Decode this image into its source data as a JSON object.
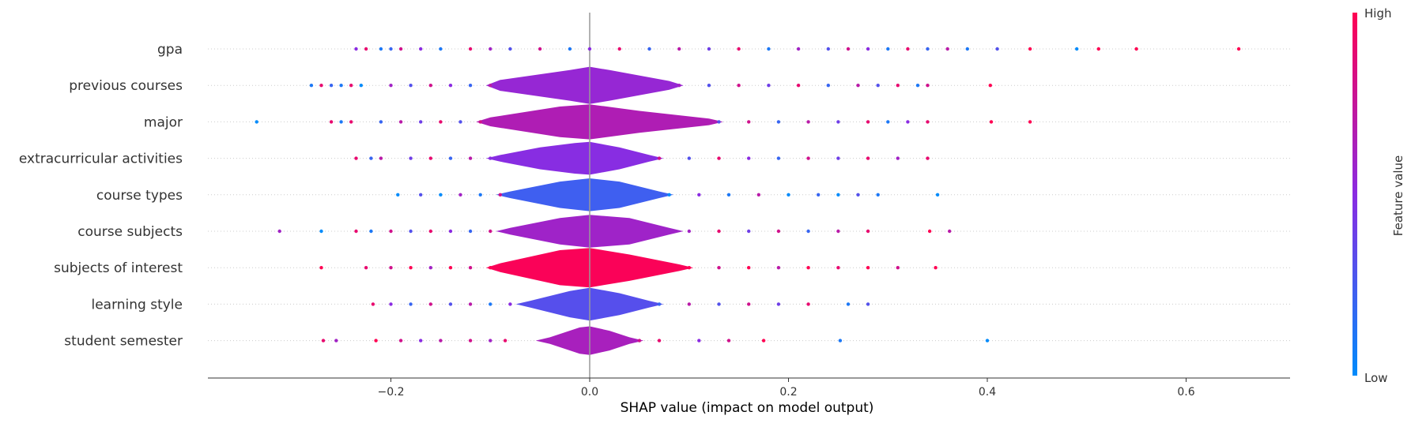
{
  "chart_data": {
    "type": "scatter",
    "subtype": "shap-summary-violin",
    "xlabel": "SHAP value (impact on model output)",
    "xticks": [
      -0.2,
      0.0,
      0.2,
      0.4,
      0.6
    ],
    "xtick_labels": [
      "−0.2",
      "0.0",
      "0.2",
      "0.4",
      "0.6"
    ],
    "xlim": [
      -0.38,
      0.705
    ],
    "colorbar": {
      "label": "Feature value",
      "high_label": "High",
      "low_label": "Low",
      "high_color": "#ff0052",
      "mid_color": "#8a2be2",
      "low_color": "#008bfb"
    },
    "grid": "dotted horizontal per feature",
    "features": [
      {
        "name": "gpa",
        "range": [
          -0.235,
          0.653
        ],
        "violin": [],
        "points": [
          {
            "x": -0.235,
            "c": 0.5
          },
          {
            "x": -0.225,
            "c": 0.9
          },
          {
            "x": -0.21,
            "c": 0.1
          },
          {
            "x": -0.2,
            "c": 0.2
          },
          {
            "x": -0.19,
            "c": 0.8
          },
          {
            "x": -0.17,
            "c": 0.5
          },
          {
            "x": -0.15,
            "c": 0.1
          },
          {
            "x": -0.12,
            "c": 0.9
          },
          {
            "x": -0.1,
            "c": 0.6
          },
          {
            "x": -0.08,
            "c": 0.3
          },
          {
            "x": -0.05,
            "c": 0.8
          },
          {
            "x": -0.02,
            "c": 0.1
          },
          {
            "x": 0.0,
            "c": 0.5
          },
          {
            "x": 0.03,
            "c": 0.9
          },
          {
            "x": 0.06,
            "c": 0.2
          },
          {
            "x": 0.09,
            "c": 0.7
          },
          {
            "x": 0.12,
            "c": 0.4
          },
          {
            "x": 0.15,
            "c": 0.9
          },
          {
            "x": 0.18,
            "c": 0.1
          },
          {
            "x": 0.21,
            "c": 0.6
          },
          {
            "x": 0.24,
            "c": 0.3
          },
          {
            "x": 0.26,
            "c": 0.8
          },
          {
            "x": 0.28,
            "c": 0.5
          },
          {
            "x": 0.3,
            "c": 0.1
          },
          {
            "x": 0.32,
            "c": 0.9
          },
          {
            "x": 0.34,
            "c": 0.2
          },
          {
            "x": 0.36,
            "c": 0.7
          },
          {
            "x": 0.38,
            "c": 0.1
          },
          {
            "x": 0.41,
            "c": 0.3
          },
          {
            "x": 0.443,
            "c": 1.0
          },
          {
            "x": 0.49,
            "c": 0.0
          },
          {
            "x": 0.512,
            "c": 1.0
          },
          {
            "x": 0.55,
            "c": 1.0
          },
          {
            "x": 0.653,
            "c": 1.0
          }
        ]
      },
      {
        "name": "previous courses",
        "range": [
          -0.28,
          0.403
        ],
        "violin": [
          [
            -0.09,
            0.05,
            0.55
          ],
          [
            -0.02,
            0.14,
            0.55
          ],
          [
            0.0,
            0.17,
            0.55
          ],
          [
            0.02,
            0.14,
            0.55
          ],
          [
            0.08,
            0.04,
            0.55
          ]
        ],
        "points": [
          {
            "x": -0.28,
            "c": 0.1
          },
          {
            "x": -0.27,
            "c": 0.9
          },
          {
            "x": -0.26,
            "c": 0.2
          },
          {
            "x": -0.25,
            "c": 0.1
          },
          {
            "x": -0.24,
            "c": 0.9
          },
          {
            "x": -0.23,
            "c": 0.0
          },
          {
            "x": -0.2,
            "c": 0.6
          },
          {
            "x": -0.18,
            "c": 0.3
          },
          {
            "x": -0.16,
            "c": 0.8
          },
          {
            "x": -0.14,
            "c": 0.5
          },
          {
            "x": -0.12,
            "c": 0.2
          },
          {
            "x": -0.1,
            "c": 0.7
          },
          {
            "x": 0.09,
            "c": 0.6
          },
          {
            "x": 0.12,
            "c": 0.3
          },
          {
            "x": 0.15,
            "c": 0.8
          },
          {
            "x": 0.18,
            "c": 0.4
          },
          {
            "x": 0.21,
            "c": 0.9
          },
          {
            "x": 0.24,
            "c": 0.2
          },
          {
            "x": 0.27,
            "c": 0.7
          },
          {
            "x": 0.29,
            "c": 0.3
          },
          {
            "x": 0.31,
            "c": 0.9
          },
          {
            "x": 0.33,
            "c": 0.1
          },
          {
            "x": 0.34,
            "c": 0.8
          },
          {
            "x": 0.403,
            "c": 1.0
          }
        ]
      },
      {
        "name": "major",
        "range": [
          -0.335,
          0.443
        ],
        "violin": [
          [
            -0.1,
            0.04,
            0.65
          ],
          [
            -0.03,
            0.14,
            0.65
          ],
          [
            0.0,
            0.16,
            0.7
          ],
          [
            0.05,
            0.1,
            0.7
          ],
          [
            0.12,
            0.03,
            0.6
          ]
        ],
        "points": [
          {
            "x": -0.335,
            "c": 0.0
          },
          {
            "x": -0.26,
            "c": 0.9
          },
          {
            "x": -0.25,
            "c": 0.1
          },
          {
            "x": -0.24,
            "c": 0.9
          },
          {
            "x": -0.21,
            "c": 0.2
          },
          {
            "x": -0.19,
            "c": 0.7
          },
          {
            "x": -0.17,
            "c": 0.4
          },
          {
            "x": -0.15,
            "c": 0.9
          },
          {
            "x": -0.13,
            "c": 0.3
          },
          {
            "x": -0.11,
            "c": 0.8
          },
          {
            "x": 0.13,
            "c": 0.3
          },
          {
            "x": 0.16,
            "c": 0.8
          },
          {
            "x": 0.19,
            "c": 0.2
          },
          {
            "x": 0.22,
            "c": 0.7
          },
          {
            "x": 0.25,
            "c": 0.4
          },
          {
            "x": 0.28,
            "c": 0.9
          },
          {
            "x": 0.3,
            "c": 0.1
          },
          {
            "x": 0.32,
            "c": 0.5
          },
          {
            "x": 0.34,
            "c": 0.9
          },
          {
            "x": 0.404,
            "c": 1.0
          },
          {
            "x": 0.443,
            "c": 1.0
          }
        ]
      },
      {
        "name": "extracurricular activities",
        "range": [
          -0.235,
          0.34
        ],
        "violin": [
          [
            -0.09,
            0.03,
            0.6
          ],
          [
            -0.05,
            0.1,
            0.4
          ],
          [
            -0.015,
            0.14,
            0.4
          ],
          [
            0.0,
            0.15,
            0.5
          ],
          [
            0.03,
            0.1,
            0.45
          ],
          [
            0.06,
            0.03,
            0.6
          ]
        ],
        "points": [
          {
            "x": -0.235,
            "c": 0.9
          },
          {
            "x": -0.22,
            "c": 0.2
          },
          {
            "x": -0.21,
            "c": 0.7
          },
          {
            "x": -0.18,
            "c": 0.4
          },
          {
            "x": -0.16,
            "c": 0.9
          },
          {
            "x": -0.14,
            "c": 0.2
          },
          {
            "x": -0.12,
            "c": 0.7
          },
          {
            "x": -0.1,
            "c": 0.5
          },
          {
            "x": 0.07,
            "c": 0.8
          },
          {
            "x": 0.1,
            "c": 0.3
          },
          {
            "x": 0.13,
            "c": 0.9
          },
          {
            "x": 0.16,
            "c": 0.5
          },
          {
            "x": 0.19,
            "c": 0.2
          },
          {
            "x": 0.22,
            "c": 0.8
          },
          {
            "x": 0.25,
            "c": 0.4
          },
          {
            "x": 0.28,
            "c": 0.9
          },
          {
            "x": 0.31,
            "c": 0.6
          },
          {
            "x": 0.34,
            "c": 0.9
          }
        ]
      },
      {
        "name": "course types",
        "range": [
          -0.193,
          0.35
        ],
        "violin": [
          [
            -0.08,
            0.03,
            0.15
          ],
          [
            -0.03,
            0.12,
            0.2
          ],
          [
            0.0,
            0.15,
            0.25
          ],
          [
            0.03,
            0.12,
            0.3
          ],
          [
            0.07,
            0.03,
            0.25
          ]
        ],
        "points": [
          {
            "x": -0.193,
            "c": 0.0
          },
          {
            "x": -0.17,
            "c": 0.3
          },
          {
            "x": -0.15,
            "c": 0.0
          },
          {
            "x": -0.13,
            "c": 0.6
          },
          {
            "x": -0.11,
            "c": 0.1
          },
          {
            "x": -0.09,
            "c": 0.8
          },
          {
            "x": 0.08,
            "c": 0.0
          },
          {
            "x": 0.11,
            "c": 0.5
          },
          {
            "x": 0.14,
            "c": 0.1
          },
          {
            "x": 0.17,
            "c": 0.7
          },
          {
            "x": 0.2,
            "c": 0.0
          },
          {
            "x": 0.23,
            "c": 0.2
          },
          {
            "x": 0.25,
            "c": 0.0
          },
          {
            "x": 0.27,
            "c": 0.3
          },
          {
            "x": 0.29,
            "c": 0.1
          },
          {
            "x": 0.35,
            "c": 0.0
          }
        ]
      },
      {
        "name": "course subjects",
        "range": [
          -0.312,
          0.362
        ],
        "violin": [
          [
            -0.08,
            0.03,
            0.7
          ],
          [
            -0.03,
            0.12,
            0.55
          ],
          [
            0.0,
            0.15,
            0.5
          ],
          [
            0.04,
            0.12,
            0.6
          ],
          [
            0.08,
            0.03,
            0.6
          ]
        ],
        "points": [
          {
            "x": -0.312,
            "c": 0.6
          },
          {
            "x": -0.27,
            "c": 0.0
          },
          {
            "x": -0.235,
            "c": 0.9
          },
          {
            "x": -0.22,
            "c": 0.1
          },
          {
            "x": -0.2,
            "c": 0.8
          },
          {
            "x": -0.18,
            "c": 0.3
          },
          {
            "x": -0.16,
            "c": 0.9
          },
          {
            "x": -0.14,
            "c": 0.5
          },
          {
            "x": -0.12,
            "c": 0.2
          },
          {
            "x": -0.1,
            "c": 0.8
          },
          {
            "x": 0.1,
            "c": 0.6
          },
          {
            "x": 0.13,
            "c": 0.9
          },
          {
            "x": 0.16,
            "c": 0.4
          },
          {
            "x": 0.19,
            "c": 0.8
          },
          {
            "x": 0.22,
            "c": 0.2
          },
          {
            "x": 0.25,
            "c": 0.7
          },
          {
            "x": 0.28,
            "c": 0.9
          },
          {
            "x": 0.342,
            "c": 1.0
          },
          {
            "x": 0.362,
            "c": 0.7
          }
        ]
      },
      {
        "name": "subjects of interest",
        "range": [
          -0.27,
          0.348
        ],
        "violin": [
          [
            -0.09,
            0.04,
            0.95
          ],
          [
            -0.03,
            0.16,
            1.0
          ],
          [
            0.0,
            0.18,
            1.0
          ],
          [
            0.04,
            0.12,
            1.0
          ],
          [
            0.09,
            0.03,
            0.95
          ]
        ],
        "points": [
          {
            "x": -0.27,
            "c": 1.0
          },
          {
            "x": -0.225,
            "c": 0.9
          },
          {
            "x": -0.2,
            "c": 0.8
          },
          {
            "x": -0.18,
            "c": 1.0
          },
          {
            "x": -0.16,
            "c": 0.6
          },
          {
            "x": -0.14,
            "c": 1.0
          },
          {
            "x": -0.12,
            "c": 0.8
          },
          {
            "x": -0.1,
            "c": 1.0
          },
          {
            "x": 0.1,
            "c": 1.0
          },
          {
            "x": 0.13,
            "c": 0.8
          },
          {
            "x": 0.16,
            "c": 1.0
          },
          {
            "x": 0.19,
            "c": 0.7
          },
          {
            "x": 0.22,
            "c": 1.0
          },
          {
            "x": 0.25,
            "c": 0.9
          },
          {
            "x": 0.28,
            "c": 1.0
          },
          {
            "x": 0.31,
            "c": 0.8
          },
          {
            "x": 0.348,
            "c": 1.0
          }
        ]
      },
      {
        "name": "learning style",
        "range": [
          -0.218,
          0.282
        ],
        "violin": [
          [
            -0.06,
            0.03,
            0.3
          ],
          [
            -0.02,
            0.12,
            0.3
          ],
          [
            0.0,
            0.15,
            0.35
          ],
          [
            0.03,
            0.1,
            0.3
          ],
          [
            0.06,
            0.03,
            0.3
          ]
        ],
        "points": [
          {
            "x": -0.218,
            "c": 0.9
          },
          {
            "x": -0.2,
            "c": 0.5
          },
          {
            "x": -0.18,
            "c": 0.2
          },
          {
            "x": -0.16,
            "c": 0.8
          },
          {
            "x": -0.14,
            "c": 0.3
          },
          {
            "x": -0.12,
            "c": 0.7
          },
          {
            "x": -0.1,
            "c": 0.1
          },
          {
            "x": -0.08,
            "c": 0.5
          },
          {
            "x": 0.07,
            "c": 0.2
          },
          {
            "x": 0.1,
            "c": 0.7
          },
          {
            "x": 0.13,
            "c": 0.3
          },
          {
            "x": 0.16,
            "c": 0.8
          },
          {
            "x": 0.19,
            "c": 0.4
          },
          {
            "x": 0.22,
            "c": 0.9
          },
          {
            "x": 0.26,
            "c": 0.1
          },
          {
            "x": 0.28,
            "c": 0.3
          }
        ]
      },
      {
        "name": "student semester",
        "range": [
          -0.268,
          0.4
        ],
        "violin": [
          [
            -0.04,
            0.03,
            0.7
          ],
          [
            -0.01,
            0.12,
            0.65
          ],
          [
            0.0,
            0.13,
            0.6
          ],
          [
            0.02,
            0.09,
            0.6
          ],
          [
            0.04,
            0.03,
            0.6
          ]
        ],
        "points": [
          {
            "x": -0.268,
            "c": 0.9
          },
          {
            "x": -0.255,
            "c": 0.6
          },
          {
            "x": -0.215,
            "c": 1.0
          },
          {
            "x": -0.19,
            "c": 0.8
          },
          {
            "x": -0.17,
            "c": 0.5
          },
          {
            "x": -0.15,
            "c": 0.7
          },
          {
            "x": -0.12,
            "c": 0.8
          },
          {
            "x": -0.1,
            "c": 0.6
          },
          {
            "x": -0.085,
            "c": 0.9
          },
          {
            "x": 0.05,
            "c": 0.8
          },
          {
            "x": 0.07,
            "c": 0.9
          },
          {
            "x": 0.11,
            "c": 0.5
          },
          {
            "x": 0.14,
            "c": 0.8
          },
          {
            "x": 0.175,
            "c": 1.0
          },
          {
            "x": 0.252,
            "c": 0.1
          },
          {
            "x": 0.4,
            "c": 0.0
          }
        ]
      }
    ]
  }
}
